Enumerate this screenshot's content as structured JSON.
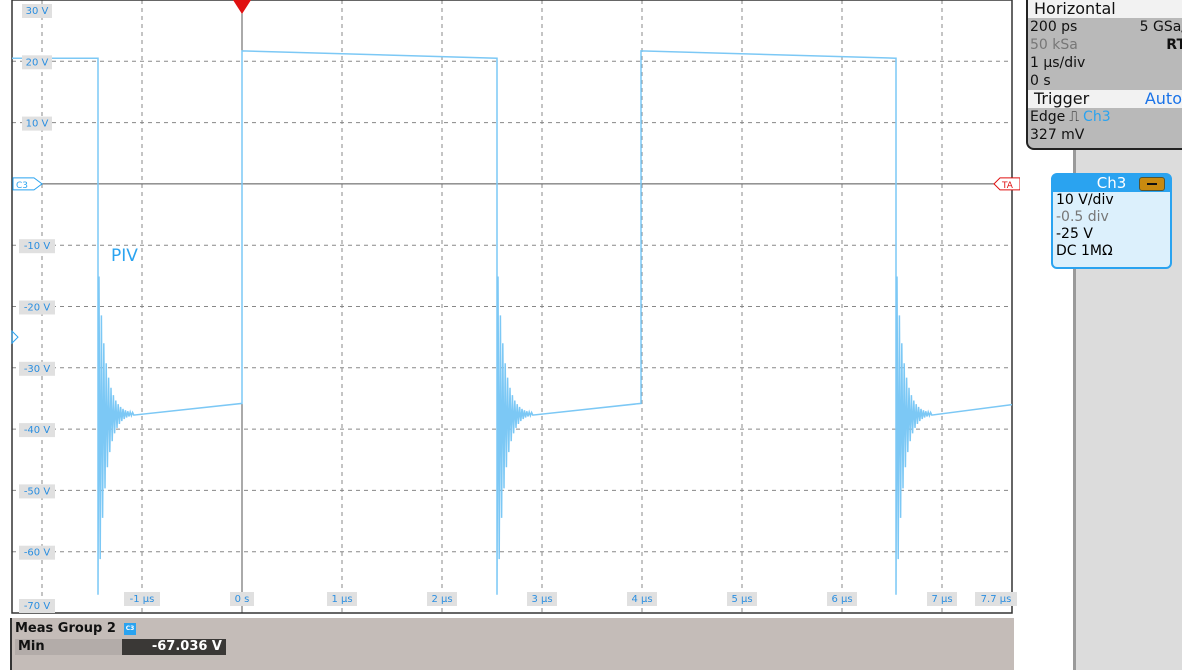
{
  "horizontal": {
    "title": "Horizontal",
    "resolution": "200 ps",
    "sample_rate": "5 GSa/",
    "record": "50 kSa",
    "mode": "RT",
    "time_scale": "1 µs/div",
    "position": "0 s"
  },
  "trigger": {
    "title": "Trigger",
    "mode": "Auto",
    "type": "Edge",
    "source": "Ch3",
    "level": "327 mV",
    "edge_icon": "rising-edge-icon"
  },
  "channel": {
    "name": "Ch3",
    "scale": "10 V/div",
    "offset_div": "-0.5 div",
    "offset": "-25 V",
    "coupling": "DC 1MΩ",
    "color": "#2aa3f0"
  },
  "markers": {
    "channel_marker": "C3",
    "trigger_marker": "TA"
  },
  "annotation": "PIV",
  "chart_data": {
    "type": "line",
    "xlim": [
      -2.3,
      7.7
    ],
    "ylim": [
      -70,
      30
    ],
    "grid": true,
    "x_ticks": [
      {
        "v": -1,
        "label": "-1 µs"
      },
      {
        "v": 0,
        "label": "0 s"
      },
      {
        "v": 1,
        "label": "1 µs"
      },
      {
        "v": 2,
        "label": "2 µs"
      },
      {
        "v": 3,
        "label": "3 µs"
      },
      {
        "v": 4,
        "label": "4 µs"
      },
      {
        "v": 5,
        "label": "5 µs"
      },
      {
        "v": 6,
        "label": "6 µs"
      },
      {
        "v": 7,
        "label": "7 µs"
      },
      {
        "v": 7.7,
        "label": "7.7 µs"
      }
    ],
    "y_ticks": [
      {
        "v": 30,
        "label": "30 V"
      },
      {
        "v": 20,
        "label": "20 V"
      },
      {
        "v": 10,
        "label": "10 V"
      },
      {
        "v": -10,
        "label": "-10 V"
      },
      {
        "v": -20,
        "label": "-20 V"
      },
      {
        "v": -30,
        "label": "-30 V"
      },
      {
        "v": -40,
        "label": "-40 V"
      },
      {
        "v": -50,
        "label": "-50 V"
      },
      {
        "v": -60,
        "label": "-60 V"
      },
      {
        "v": -70,
        "label": "-70 V"
      }
    ],
    "series": [
      {
        "color": "#7cc8f5",
        "high_level": 20.5,
        "low_level": -36.5,
        "min": -67.036,
        "falling_edges": [
          -1.44,
          2.55,
          6.54
        ],
        "rising_edges": [
          0,
          3.99
        ]
      }
    ]
  },
  "measurement": {
    "group": "Meas Group 2",
    "source_badge": "C3",
    "name": "Min",
    "value": "-67.036 V"
  }
}
